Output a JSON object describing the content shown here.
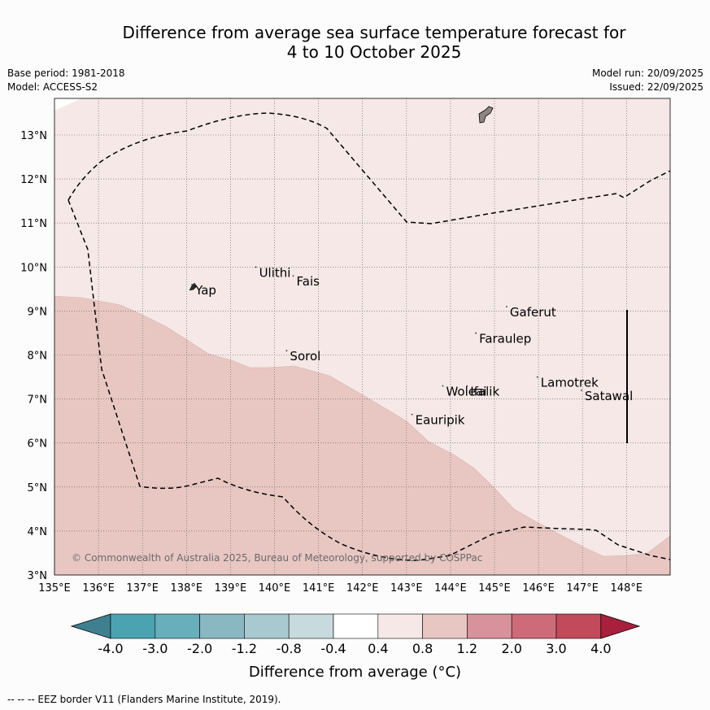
{
  "header": {
    "title_line1": "Difference from average sea surface temperature forecast for",
    "title_line2": "4 to 10 October 2025",
    "base_period": "Base period: 1981-2018",
    "model": "Model: ACCESS-S2",
    "model_run": "Model run: 20/09/2025",
    "issued": "Issued: 22/09/2025"
  },
  "map": {
    "lon_labels": [
      "135°E",
      "136°E",
      "137°E",
      "138°E",
      "139°E",
      "140°E",
      "141°E",
      "142°E",
      "143°E",
      "144°E",
      "145°E",
      "146°E",
      "147°E",
      "148°E"
    ],
    "lat_labels": [
      "3°N",
      "4°N",
      "5°N",
      "6°N",
      "7°N",
      "8°N",
      "9°N",
      "10°N",
      "11°N",
      "12°N",
      "13°N"
    ],
    "places": [
      {
        "name": "Yap",
        "lon": 138.2,
        "lat": 9.45
      },
      {
        "name": "Ulithi",
        "lon": 139.65,
        "lat": 9.85
      },
      {
        "name": "Fais",
        "lon": 140.5,
        "lat": 9.65
      },
      {
        "name": "Sorol",
        "lon": 140.35,
        "lat": 7.95
      },
      {
        "name": "Gaferut",
        "lon": 145.35,
        "lat": 8.95
      },
      {
        "name": "Faraulep",
        "lon": 144.65,
        "lat": 8.35
      },
      {
        "name": "Woleai",
        "lon": 143.9,
        "lat": 7.15
      },
      {
        "name": "Ifalik",
        "lon": 144.45,
        "lat": 7.15
      },
      {
        "name": "Eauripik",
        "lon": 143.2,
        "lat": 6.5
      },
      {
        "name": "Lamotrek",
        "lon": 146.05,
        "lat": 7.35
      },
      {
        "name": "Satawal",
        "lon": 147.05,
        "lat": 7.05
      }
    ],
    "copyright": "© Commonwealth of Australia 2025, Bureau of Meteorology, supported by COSPPac",
    "anomaly_band": "0.8 to 1.2",
    "background_band": "0.4 to 0.8"
  },
  "colorbar": {
    "labels": [
      "-4.0",
      "-3.0",
      "-2.0",
      "-1.2",
      "-0.8",
      "-0.4",
      "0.4",
      "0.8",
      "1.2",
      "2.0",
      "3.0",
      "4.0"
    ],
    "colors": [
      "#3f8090",
      "#4ba3b1",
      "#69aebb",
      "#89b8c3",
      "#a9c9d0",
      "#c7dadd",
      "#ffffff",
      "#f5e8e7",
      "#e8c7c2",
      "#d7929b",
      "#cd6b79",
      "#c14a5b",
      "#a8203c"
    ],
    "title": "Difference from average (°C)"
  },
  "footnote": "--  --  -- EEZ border V11 (Flanders Marine Institute, 2019)."
}
